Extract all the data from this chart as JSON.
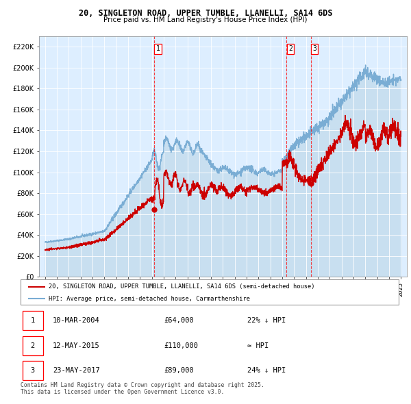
{
  "title": "20, SINGLETON ROAD, UPPER TUMBLE, LLANELLI, SA14 6DS",
  "subtitle": "Price paid vs. HM Land Registry's House Price Index (HPI)",
  "legend_property": "20, SINGLETON ROAD, UPPER TUMBLE, LLANELLI, SA14 6DS (semi-detached house)",
  "legend_hpi": "HPI: Average price, semi-detached house, Carmarthenshire",
  "footer": "Contains HM Land Registry data © Crown copyright and database right 2025.\nThis data is licensed under the Open Government Licence v3.0.",
  "property_color": "#cc0000",
  "hpi_color": "#7aadd4",
  "hpi_fill_color": "#c8dff0",
  "background_color": "#ddeeff",
  "sale_data": [
    {
      "date_num": 2004.19,
      "price": 64000,
      "label": "1",
      "date_str": "10-MAR-2004",
      "hpi_note": "22% ↓ HPI"
    },
    {
      "date_num": 2015.36,
      "price": 110000,
      "label": "2",
      "date_str": "12-MAY-2015",
      "hpi_note": "≈ HPI"
    },
    {
      "date_num": 2017.39,
      "price": 89000,
      "label": "3",
      "date_str": "23-MAY-2017",
      "hpi_note": "24% ↓ HPI"
    }
  ],
  "ylim": [
    0,
    230000
  ],
  "xlim": [
    1994.5,
    2025.5
  ],
  "yticks": [
    0,
    20000,
    40000,
    60000,
    80000,
    100000,
    120000,
    140000,
    160000,
    180000,
    200000,
    220000
  ],
  "ytick_labels": [
    "£0",
    "£20K",
    "£40K",
    "£60K",
    "£80K",
    "£100K",
    "£120K",
    "£140K",
    "£160K",
    "£180K",
    "£200K",
    "£220K"
  ],
  "xticks": [
    1995,
    1996,
    1997,
    1998,
    1999,
    2000,
    2001,
    2002,
    2003,
    2004,
    2005,
    2006,
    2007,
    2008,
    2009,
    2010,
    2011,
    2012,
    2013,
    2014,
    2015,
    2016,
    2017,
    2018,
    2019,
    2020,
    2021,
    2022,
    2023,
    2024,
    2025
  ]
}
